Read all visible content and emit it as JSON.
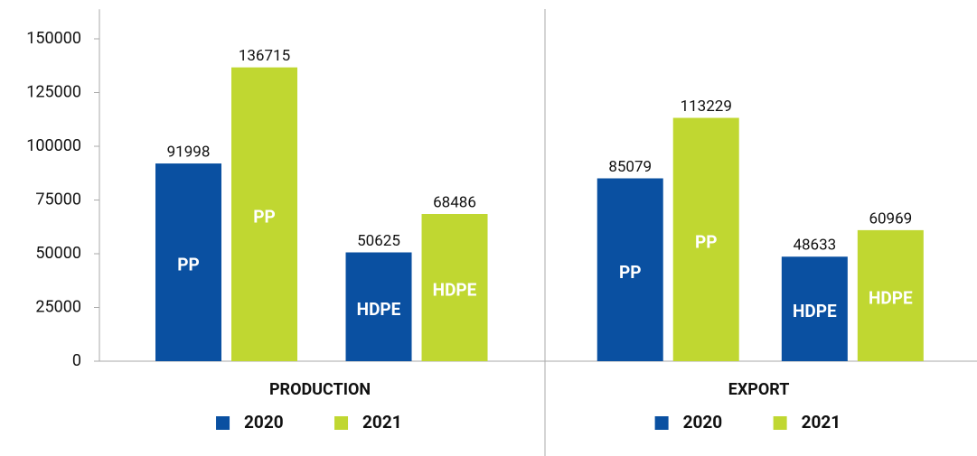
{
  "chart_data": [
    {
      "type": "bar",
      "title": "PRODUCTION",
      "categories": [
        "PP",
        "HDPE"
      ],
      "series": [
        {
          "name": "2020",
          "color": "#0a50a1",
          "values": [
            91998,
            50625
          ]
        },
        {
          "name": "2021",
          "color": "#c0d731",
          "values": [
            136715,
            68486
          ]
        }
      ],
      "ylim": [
        0,
        160000
      ],
      "yticks": [
        0,
        25000,
        50000,
        75000,
        100000,
        125000,
        150000
      ]
    },
    {
      "type": "bar",
      "title": "EXPORT",
      "categories": [
        "PP",
        "HDPE"
      ],
      "series": [
        {
          "name": "2020",
          "color": "#0a50a1",
          "values": [
            85079,
            48633
          ]
        },
        {
          "name": "2021",
          "color": "#c0d731",
          "values": [
            113229,
            60969
          ]
        }
      ],
      "ylim": [
        0,
        160000
      ]
    }
  ]
}
